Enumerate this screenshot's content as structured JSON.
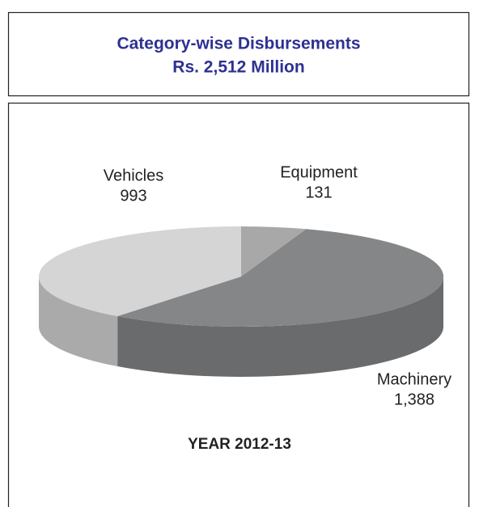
{
  "chart_data": {
    "type": "pie",
    "title": "Category-wise Disbursements",
    "subtitle": "Rs. 2,512 Million",
    "categories": [
      "Equipment",
      "Machinery",
      "Vehicles"
    ],
    "values": [
      131,
      1388,
      993
    ],
    "value_labels": [
      "131",
      "1,388",
      "993"
    ],
    "colors": [
      "#a8a8a8",
      "#858688",
      "#d5d5d6"
    ],
    "annotation": "YEAR  2012-13"
  }
}
